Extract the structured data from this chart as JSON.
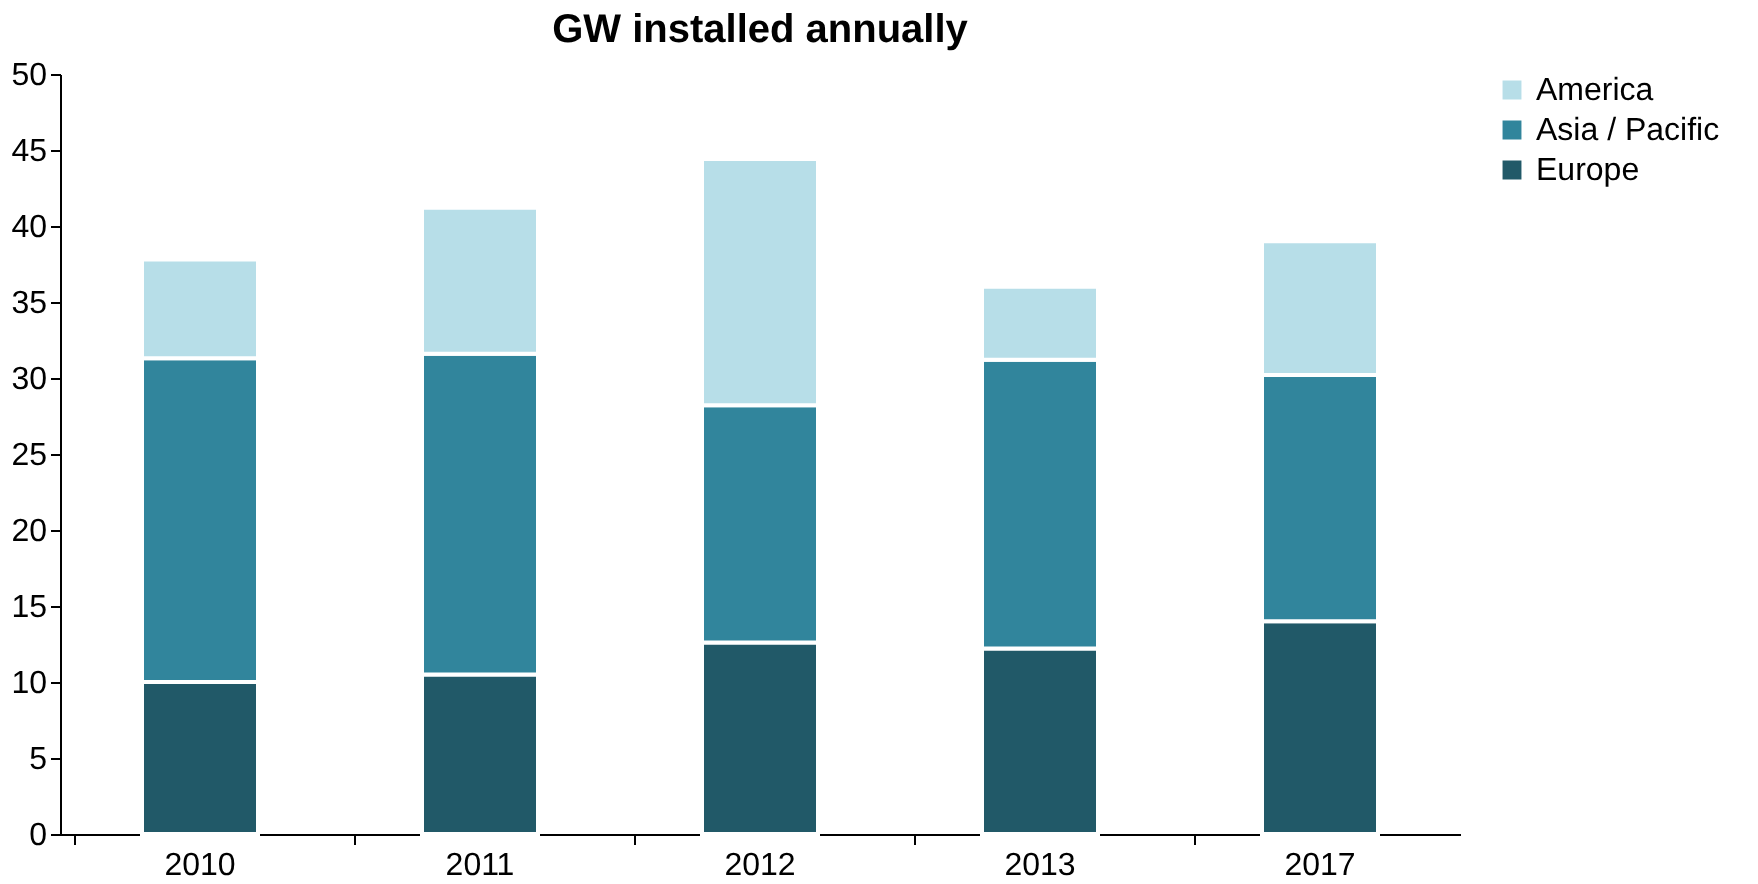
{
  "chart_data": {
    "type": "bar",
    "title": "GW installed annually",
    "stacked": true,
    "categories": [
      "2010",
      "2011",
      "2012",
      "2013",
      "2017"
    ],
    "series": [
      {
        "name": "Europe",
        "color": "#215968",
        "values": [
          10.0,
          10.5,
          12.6,
          12.2,
          14.0
        ]
      },
      {
        "name": "Asia / Pacific",
        "color": "#31859c",
        "values": [
          21.3,
          21.1,
          15.6,
          19.0,
          16.2
        ]
      },
      {
        "name": "America",
        "color": "#b7dee8",
        "values": [
          6.5,
          9.6,
          16.2,
          4.8,
          8.8
        ]
      }
    ],
    "ylim": [
      0,
      50
    ],
    "yticks": [
      0,
      5,
      10,
      15,
      20,
      25,
      30,
      35,
      40,
      45,
      50
    ],
    "grid": false,
    "legend": "right"
  }
}
